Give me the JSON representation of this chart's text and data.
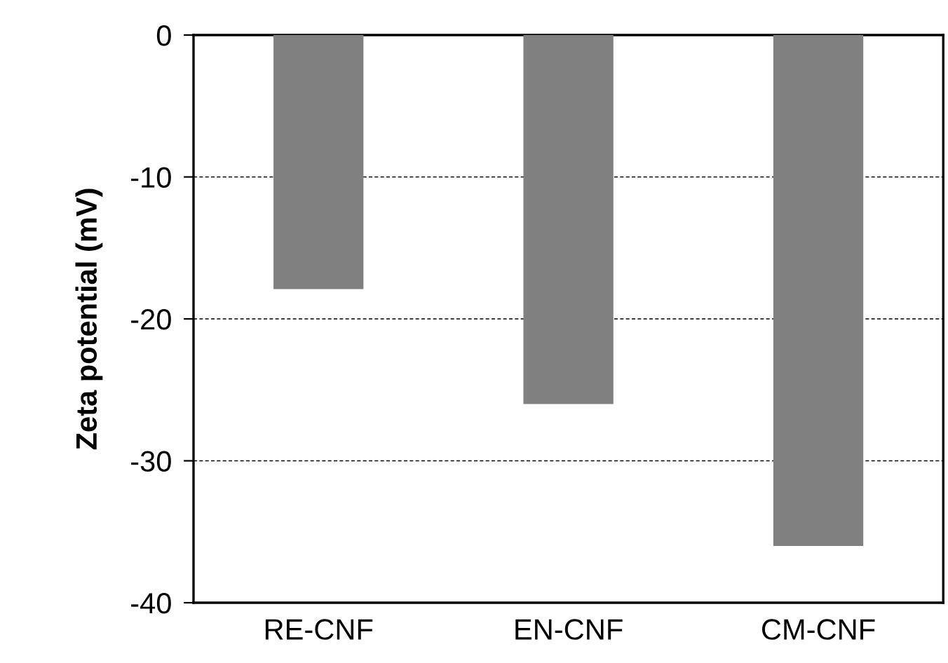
{
  "chart_data": {
    "type": "bar",
    "ylabel": "Zeta potential (mV)",
    "categories": [
      "RE-CNF",
      "EN-CNF",
      "CM-CNF"
    ],
    "values": [
      -17.9,
      -26.0,
      -36.0
    ],
    "color": "#808080",
    "ylim": [
      -40,
      0
    ],
    "yticks": [
      {
        "value": -40,
        "label": "-40"
      },
      {
        "value": -30,
        "label": "-30"
      },
      {
        "value": -20,
        "label": "-20"
      },
      {
        "value": -10,
        "label": "-10"
      },
      0
    ],
    "grid": "y"
  }
}
